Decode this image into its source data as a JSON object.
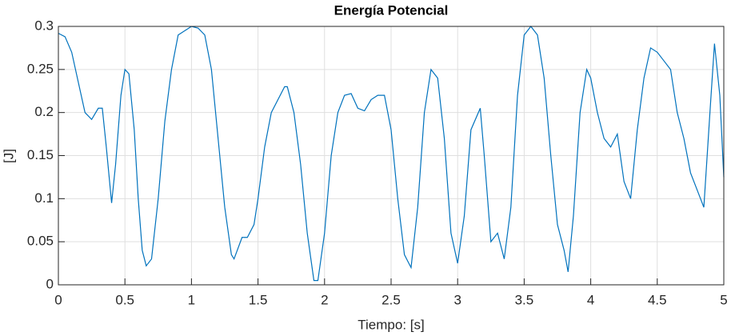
{
  "chart_data": {
    "type": "line",
    "title": "Energía Potencial",
    "x_label": "Tiempo: [s]",
    "y_label": "[J]",
    "grid": true,
    "xlim": [
      0,
      5
    ],
    "xticks": [
      0,
      0.5,
      1,
      1.5,
      2,
      2.5,
      3,
      3.5,
      4,
      4.5,
      5
    ],
    "ylim": [
      0,
      0.3
    ],
    "yticks": [
      0,
      0.05,
      0.1,
      0.15,
      0.2,
      0.25,
      0.3
    ],
    "series": [
      {
        "name": "Energía Potencial",
        "color": "#0072BD",
        "x": [
          0,
          0.05,
          0.1,
          0.15,
          0.2,
          0.25,
          0.3,
          0.33,
          0.36,
          0.4,
          0.43,
          0.47,
          0.5,
          0.53,
          0.57,
          0.6,
          0.63,
          0.66,
          0.7,
          0.75,
          0.8,
          0.85,
          0.9,
          0.95,
          1.0,
          1.05,
          1.1,
          1.15,
          1.2,
          1.25,
          1.3,
          1.32,
          1.38,
          1.42,
          1.47,
          1.5,
          1.55,
          1.6,
          1.65,
          1.7,
          1.72,
          1.77,
          1.82,
          1.87,
          1.92,
          1.95,
          2.0,
          2.05,
          2.1,
          2.15,
          2.2,
          2.25,
          2.3,
          2.35,
          2.4,
          2.45,
          2.5,
          2.55,
          2.6,
          2.65,
          2.7,
          2.75,
          2.8,
          2.85,
          2.9,
          2.95,
          3.0,
          3.05,
          3.1,
          3.17,
          3.2,
          3.25,
          3.3,
          3.35,
          3.4,
          3.45,
          3.5,
          3.55,
          3.6,
          3.65,
          3.7,
          3.75,
          3.8,
          3.83,
          3.87,
          3.92,
          3.97,
          4.0,
          4.05,
          4.1,
          4.15,
          4.2,
          4.25,
          4.3,
          4.35,
          4.4,
          4.45,
          4.5,
          4.55,
          4.6,
          4.65,
          4.7,
          4.75,
          4.8,
          4.85,
          4.9,
          4.93,
          4.97,
          5.0
        ],
        "values": [
          0.292,
          0.288,
          0.27,
          0.235,
          0.2,
          0.192,
          0.205,
          0.205,
          0.16,
          0.095,
          0.14,
          0.22,
          0.25,
          0.245,
          0.18,
          0.1,
          0.04,
          0.022,
          0.03,
          0.1,
          0.19,
          0.25,
          0.29,
          0.295,
          0.3,
          0.298,
          0.29,
          0.25,
          0.17,
          0.09,
          0.035,
          0.03,
          0.055,
          0.055,
          0.07,
          0.1,
          0.16,
          0.2,
          0.215,
          0.23,
          0.23,
          0.2,
          0.14,
          0.06,
          0.005,
          0.005,
          0.06,
          0.15,
          0.2,
          0.22,
          0.222,
          0.205,
          0.202,
          0.215,
          0.22,
          0.22,
          0.18,
          0.1,
          0.035,
          0.02,
          0.09,
          0.2,
          0.25,
          0.24,
          0.17,
          0.06,
          0.025,
          0.08,
          0.18,
          0.205,
          0.15,
          0.05,
          0.06,
          0.03,
          0.09,
          0.22,
          0.29,
          0.3,
          0.29,
          0.24,
          0.15,
          0.07,
          0.04,
          0.015,
          0.08,
          0.2,
          0.25,
          0.24,
          0.2,
          0.17,
          0.16,
          0.175,
          0.12,
          0.1,
          0.18,
          0.24,
          0.275,
          0.27,
          0.26,
          0.25,
          0.2,
          0.17,
          0.13,
          0.11,
          0.09,
          0.21,
          0.28,
          0.22,
          0.125
        ]
      }
    ]
  }
}
